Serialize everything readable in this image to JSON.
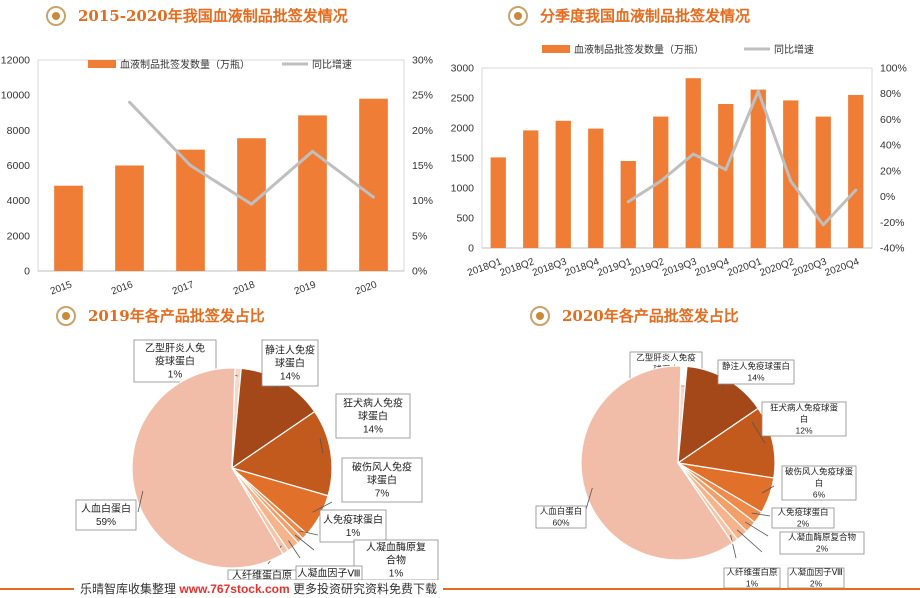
{
  "colors": {
    "bar": "#ef7d35",
    "line": "#bfbfbf",
    "title": "#e56c1f"
  },
  "footer": {
    "prefix": "乐晴智库收集整理",
    "url": "www.767stock.com",
    "suffix": "更多投资研究资料免费下载"
  },
  "chart_data": [
    {
      "type": "bar",
      "title": "2015-2020年我国血液制品批签发情况",
      "categories": [
        "2015",
        "2016",
        "2017",
        "2018",
        "2019",
        "2020"
      ],
      "series": [
        {
          "name": "血液制品批签发数量（万瓶）",
          "type": "bar",
          "axis": "left",
          "values": [
            4850,
            6000,
            6900,
            7550,
            8850,
            9800
          ]
        },
        {
          "name": "同比增速",
          "type": "line",
          "axis": "right",
          "values": [
            null,
            0.24,
            0.15,
            0.095,
            0.17,
            0.105
          ]
        }
      ],
      "yleft": {
        "ticks": [
          "0",
          "2000",
          "4000",
          "6000",
          "8000",
          "10000",
          "12000"
        ],
        "ylim": [
          0,
          12000
        ]
      },
      "yright": {
        "ticks": [
          "0%",
          "5%",
          "10%",
          "15%",
          "20%",
          "25%",
          "30%"
        ],
        "ylim": [
          0,
          0.3
        ]
      },
      "legend": "top"
    },
    {
      "type": "bar",
      "title": "分季度我国血液制品批签发情况",
      "categories": [
        "2018Q1",
        "2018Q2",
        "2018Q3",
        "2018Q4",
        "2019Q1",
        "2019Q2",
        "2019Q3",
        "2019Q4",
        "2020Q1",
        "2020Q2",
        "2020Q3",
        "2020Q4"
      ],
      "series": [
        {
          "name": "血液制品批签发数量（万瓶）",
          "type": "bar",
          "axis": "left",
          "values": [
            1510,
            1960,
            2120,
            1990,
            1450,
            2190,
            2830,
            2400,
            2640,
            2460,
            2190,
            2550
          ]
        },
        {
          "name": "同比增速",
          "type": "line",
          "axis": "right",
          "values": [
            null,
            null,
            null,
            null,
            -0.04,
            0.12,
            0.33,
            0.21,
            0.82,
            0.12,
            -0.22,
            0.05
          ]
        }
      ],
      "yleft": {
        "ticks": [
          "0",
          "500",
          "1000",
          "1500",
          "2000",
          "2500",
          "3000"
        ],
        "ylim": [
          0,
          3000
        ]
      },
      "yright": {
        "ticks": [
          "-40%",
          "-20%",
          "0%",
          "20%",
          "40%",
          "60%",
          "80%",
          "100%"
        ],
        "ylim": [
          -0.4,
          1.0
        ]
      },
      "legend": "top"
    },
    {
      "type": "pie",
      "title": "2019年各产品批签发占比",
      "slices": [
        {
          "label": "乙型肝炎人免疫球蛋白",
          "value_label": "1%",
          "value": 0.01,
          "color": "#f7d7c8"
        },
        {
          "label": "静注人免疫球蛋白",
          "value_label": "14%",
          "value": 0.14,
          "color": "#a4481a"
        },
        {
          "label": "狂犬病人免疫球蛋白",
          "value_label": "14%",
          "value": 0.14,
          "color": "#c25a1d"
        },
        {
          "label": "破伤风人免疫球蛋白",
          "value_label": "7%",
          "value": 0.07,
          "color": "#e0702a"
        },
        {
          "label": "人免疫球蛋白",
          "value_label": "1%",
          "value": 0.01,
          "color": "#ef8a4a"
        },
        {
          "label": "人凝血酶原复合物",
          "value_label": "1%",
          "value": 0.01,
          "color": "#f2a06a"
        },
        {
          "label": "人凝血因子Ⅷ",
          "value_label": "",
          "value": 0.02,
          "color": "#f5b48c"
        },
        {
          "label": "人纤维蛋白原",
          "value_label": "",
          "value": 0.01,
          "color": "#f7c4a6"
        },
        {
          "label": "人血白蛋白",
          "value_label": "59%",
          "value": 0.59,
          "color": "#f2bda8"
        }
      ]
    },
    {
      "type": "pie",
      "title": "2020年各产品批签发占比",
      "slices": [
        {
          "label": "乙型肝炎人免疫球蛋白",
          "value_label": "1%",
          "value": 0.01,
          "color": "#f7d7c8"
        },
        {
          "label": "静注人免疫球蛋白",
          "value_label": "14%",
          "value": 0.14,
          "color": "#a4481a"
        },
        {
          "label": "狂犬病人免疫球蛋白",
          "value_label": "12%",
          "value": 0.12,
          "color": "#c25a1d"
        },
        {
          "label": "破伤风人免疫球蛋白",
          "value_label": "6%",
          "value": 0.06,
          "color": "#e0702a"
        },
        {
          "label": "人免疫球蛋白",
          "value_label": "2%",
          "value": 0.02,
          "color": "#ef8a4a"
        },
        {
          "label": "人凝血酶原复合物",
          "value_label": "2%",
          "value": 0.02,
          "color": "#f2a06a"
        },
        {
          "label": "人凝血因子Ⅷ",
          "value_label": "2%",
          "value": 0.02,
          "color": "#f5b48c"
        },
        {
          "label": "人纤维蛋白原",
          "value_label": "1%",
          "value": 0.01,
          "color": "#f7c4a6"
        },
        {
          "label": "人血白蛋白",
          "value_label": "60%",
          "value": 0.6,
          "color": "#f2bda8"
        }
      ]
    }
  ]
}
